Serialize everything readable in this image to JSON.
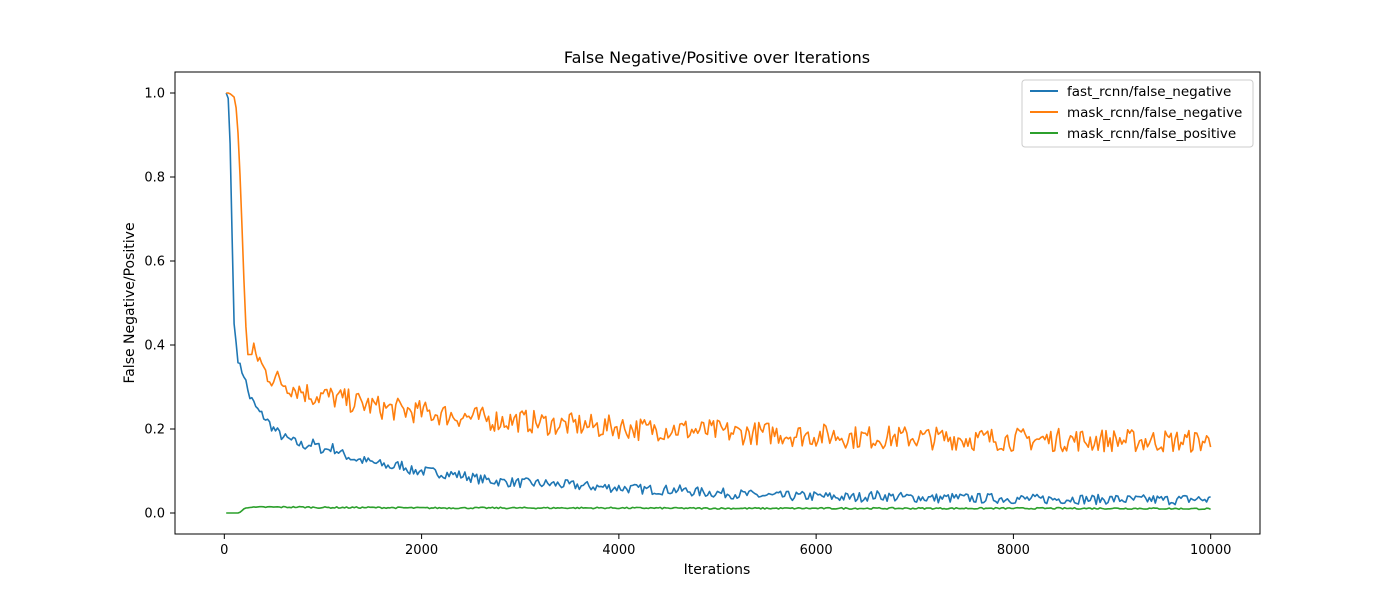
{
  "chart_data": {
    "type": "line",
    "title": "False Negative/Positive over Iterations",
    "xlabel": "Iterations",
    "ylabel": "False Negative/Positive",
    "xlim": [
      -500,
      10500
    ],
    "ylim": [
      -0.05,
      1.05
    ],
    "xticks": [
      0,
      2000,
      4000,
      6000,
      8000,
      10000
    ],
    "yticks": [
      0.0,
      0.2,
      0.4,
      0.6,
      0.8,
      1.0
    ],
    "xtick_labels": [
      "0",
      "2000",
      "4000",
      "6000",
      "8000",
      "10000"
    ],
    "ytick_labels": [
      "0.0",
      "0.2",
      "0.4",
      "0.6",
      "0.8",
      "1.0"
    ],
    "grid": false,
    "legend_position": "top-right",
    "series": [
      {
        "name": "fast_rcnn/false_negative",
        "color": "#1f77b4",
        "x": [
          19,
          50,
          75,
          100,
          150,
          200,
          250,
          300,
          350,
          400,
          500,
          600,
          700,
          800,
          900,
          1000,
          1100,
          1200,
          1300,
          1400,
          1500,
          1600,
          1700,
          1800,
          1900,
          2000,
          2200,
          2400,
          2600,
          2800,
          3000,
          3200,
          3400,
          3600,
          3800,
          4000,
          4200,
          4400,
          4600,
          4800,
          5000,
          5200,
          5400,
          5600,
          5800,
          6000,
          6200,
          6400,
          6600,
          6800,
          7000,
          7200,
          7400,
          7600,
          7800,
          8000,
          8200,
          8400,
          8600,
          8800,
          9000,
          9200,
          9400,
          9600,
          9800,
          10000
        ],
        "y": [
          1.0,
          0.98,
          0.7,
          0.44,
          0.35,
          0.33,
          0.28,
          0.26,
          0.24,
          0.23,
          0.2,
          0.18,
          0.17,
          0.16,
          0.165,
          0.15,
          0.155,
          0.14,
          0.13,
          0.125,
          0.12,
          0.115,
          0.11,
          0.115,
          0.1,
          0.1,
          0.095,
          0.09,
          0.08,
          0.075,
          0.072,
          0.07,
          0.068,
          0.065,
          0.062,
          0.06,
          0.057,
          0.055,
          0.055,
          0.05,
          0.048,
          0.045,
          0.042,
          0.04,
          0.04,
          0.04,
          0.038,
          0.037,
          0.042,
          0.038,
          0.037,
          0.035,
          0.036,
          0.035,
          0.035,
          0.034,
          0.033,
          0.033,
          0.034,
          0.032,
          0.033,
          0.031,
          0.032,
          0.031,
          0.033,
          0.032
        ]
      },
      {
        "name": "mask_rcnn/false_negative",
        "color": "#ff7f0e",
        "x": [
          19,
          50,
          100,
          130,
          160,
          200,
          230,
          260,
          300,
          350,
          400,
          500,
          600,
          700,
          800,
          900,
          1000,
          1100,
          1200,
          1300,
          1400,
          1500,
          1600,
          1800,
          2000,
          2200,
          2400,
          2600,
          2800,
          3000,
          3200,
          3400,
          3600,
          3800,
          4000,
          4200,
          4400,
          4600,
          4800,
          5000,
          5200,
          5400,
          5600,
          5800,
          6000,
          6200,
          6400,
          6600,
          6800,
          7000,
          7200,
          7400,
          7600,
          7800,
          8000,
          8200,
          8400,
          8600,
          8800,
          9000,
          9200,
          9400,
          9600,
          9800,
          10000
        ],
        "y": [
          1.0,
          1.0,
          0.99,
          0.95,
          0.8,
          0.55,
          0.4,
          0.37,
          0.38,
          0.37,
          0.34,
          0.32,
          0.31,
          0.3,
          0.29,
          0.28,
          0.28,
          0.275,
          0.27,
          0.265,
          0.26,
          0.255,
          0.25,
          0.245,
          0.24,
          0.235,
          0.23,
          0.225,
          0.22,
          0.22,
          0.215,
          0.21,
          0.21,
          0.205,
          0.205,
          0.2,
          0.2,
          0.2,
          0.195,
          0.195,
          0.19,
          0.19,
          0.19,
          0.185,
          0.185,
          0.185,
          0.18,
          0.18,
          0.18,
          0.18,
          0.178,
          0.178,
          0.176,
          0.176,
          0.175,
          0.175,
          0.174,
          0.174,
          0.173,
          0.173,
          0.172,
          0.172,
          0.171,
          0.171,
          0.17
        ]
      },
      {
        "name": "mask_rcnn/false_positive",
        "color": "#2ca02c",
        "x": [
          19,
          100,
          150,
          200,
          250,
          300,
          400,
          600,
          800,
          1000,
          1500,
          2000,
          3000,
          4000,
          5000,
          6000,
          7000,
          8000,
          9000,
          10000
        ],
        "y": [
          0.0,
          0.0,
          0.0,
          0.01,
          0.015,
          0.013,
          0.014,
          0.014,
          0.014,
          0.013,
          0.013,
          0.012,
          0.012,
          0.012,
          0.011,
          0.011,
          0.011,
          0.011,
          0.011,
          0.01
        ]
      }
    ]
  }
}
